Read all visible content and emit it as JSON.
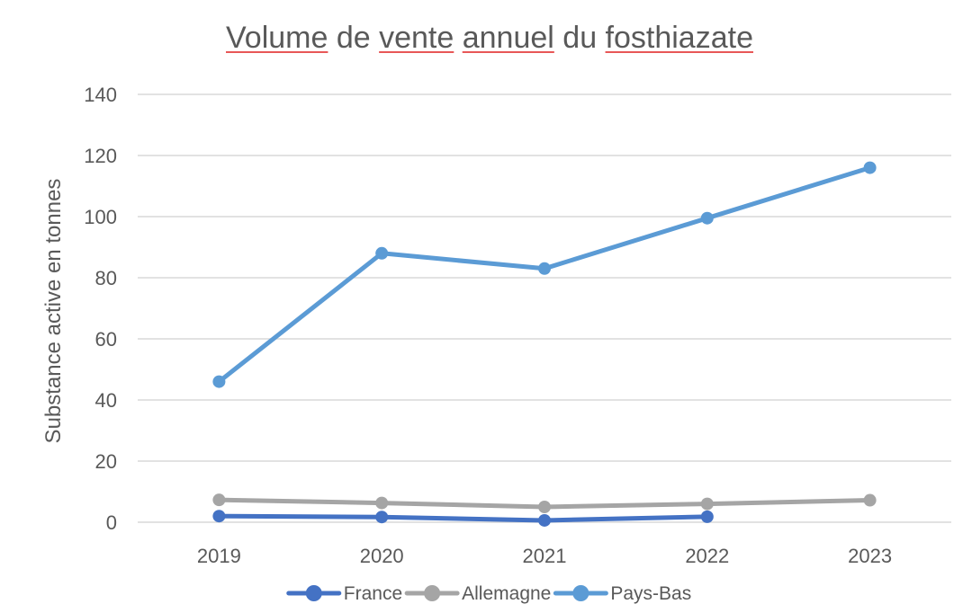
{
  "chart_data": {
    "type": "line",
    "title": "Volume de vente annuel du fosthiazate",
    "xlabel": "",
    "ylabel": "Substance active en tonnes",
    "categories": [
      "2019",
      "2020",
      "2021",
      "2022",
      "2023"
    ],
    "ylim": [
      0,
      140
    ],
    "yticks": [
      0,
      20,
      40,
      60,
      80,
      100,
      120,
      140
    ],
    "grid": true,
    "legend_position": "bottom",
    "series": [
      {
        "name": "France",
        "color": "#4472c4",
        "values": [
          2,
          1.7,
          0.6,
          1.8,
          null
        ]
      },
      {
        "name": "Allemagne",
        "color": "#a5a5a5",
        "values": [
          7.3,
          6.3,
          5,
          6,
          7.2
        ]
      },
      {
        "name": "Pays-Bas",
        "color": "#5b9bd5",
        "values": [
          46,
          88,
          83,
          99.5,
          116
        ]
      }
    ]
  }
}
